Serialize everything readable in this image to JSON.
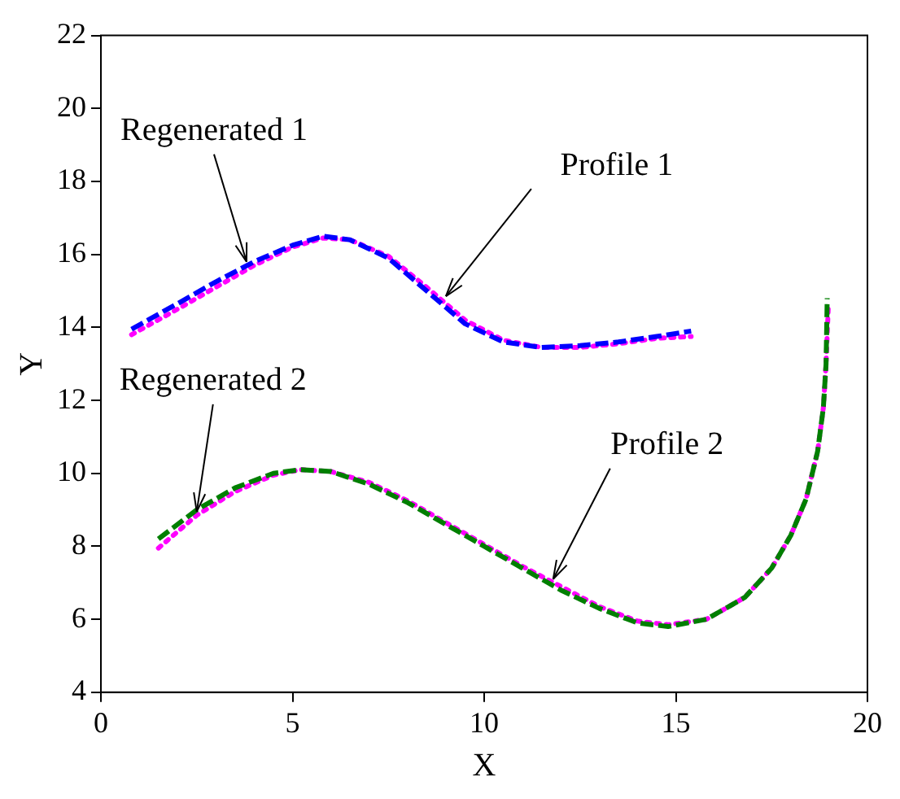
{
  "chart_data": {
    "type": "line",
    "xlabel": "X",
    "ylabel": "Y",
    "xlim": [
      0,
      20
    ],
    "xticks": [
      0,
      5,
      10,
      15,
      20
    ],
    "ylim": [
      4,
      22
    ],
    "yticks": [
      4,
      6,
      8,
      10,
      12,
      14,
      16,
      18,
      20,
      22
    ],
    "grid": false,
    "legend": false,
    "marker": "none",
    "series": [
      {
        "color": "#0000ff",
        "line_style": "dashed",
        "x": [
          0.8,
          2,
          3,
          4,
          5,
          5.8,
          6.5,
          7.5,
          8.5,
          9.5,
          10.5,
          11.5,
          12.5,
          13.5,
          14.5,
          15.4
        ],
        "values": [
          13.95,
          14.65,
          15.25,
          15.8,
          16.25,
          16.5,
          16.4,
          15.9,
          15.0,
          14.1,
          13.6,
          13.45,
          13.5,
          13.6,
          13.75,
          13.9
        ]
      },
      {
        "color": "#ff00ff",
        "line_style": "dotted",
        "x": [
          0.8,
          2,
          3,
          4,
          5,
          5.8,
          6.5,
          7.5,
          8.5,
          9.5,
          10.5,
          11.5,
          12.5,
          13.5,
          14.5,
          15.4
        ],
        "values": [
          13.8,
          14.5,
          15.1,
          15.7,
          16.2,
          16.45,
          16.4,
          15.95,
          15.1,
          14.2,
          13.65,
          13.45,
          13.45,
          13.55,
          13.7,
          13.75
        ]
      },
      {
        "color": "#007f00",
        "line_style": "dashed",
        "x": [
          1.5,
          2.5,
          3.5,
          4.5,
          5.2,
          6,
          7,
          8,
          9,
          10,
          11,
          12,
          13,
          14,
          14.8,
          15.8,
          16.8,
          17.5,
          18,
          18.4,
          18.7,
          18.85,
          18.92,
          18.95
        ],
        "values": [
          8.2,
          9.0,
          9.6,
          10.0,
          10.1,
          10.05,
          9.7,
          9.2,
          8.6,
          8.0,
          7.4,
          6.8,
          6.3,
          5.9,
          5.8,
          6.0,
          6.6,
          7.4,
          8.3,
          9.3,
          10.6,
          11.8,
          13.0,
          14.8
        ]
      },
      {
        "color": "#ff00ff",
        "line_style": "dotted",
        "x": [
          1.5,
          2.5,
          3.5,
          4.5,
          5.2,
          6,
          7,
          8,
          9,
          10,
          11,
          12,
          13,
          14,
          14.8,
          15.8,
          16.8,
          17.5,
          18,
          18.4,
          18.7,
          18.85,
          18.92,
          18.98
        ],
        "values": [
          7.95,
          8.85,
          9.5,
          9.95,
          10.1,
          10.05,
          9.75,
          9.25,
          8.65,
          8.05,
          7.45,
          6.9,
          6.35,
          5.95,
          5.85,
          6.0,
          6.6,
          7.4,
          8.3,
          9.3,
          10.6,
          11.8,
          13.0,
          14.6
        ]
      }
    ],
    "annotations": [
      {
        "text": "Regenerated 1",
        "x": 3.8,
        "y": 15.8
      },
      {
        "text": "Profile 1",
        "x": 9.0,
        "y": 14.85
      },
      {
        "text": "Regenerated 2",
        "x": 2.5,
        "y": 8.95
      },
      {
        "text": "Profile 2",
        "x": 11.8,
        "y": 7.1
      }
    ]
  }
}
